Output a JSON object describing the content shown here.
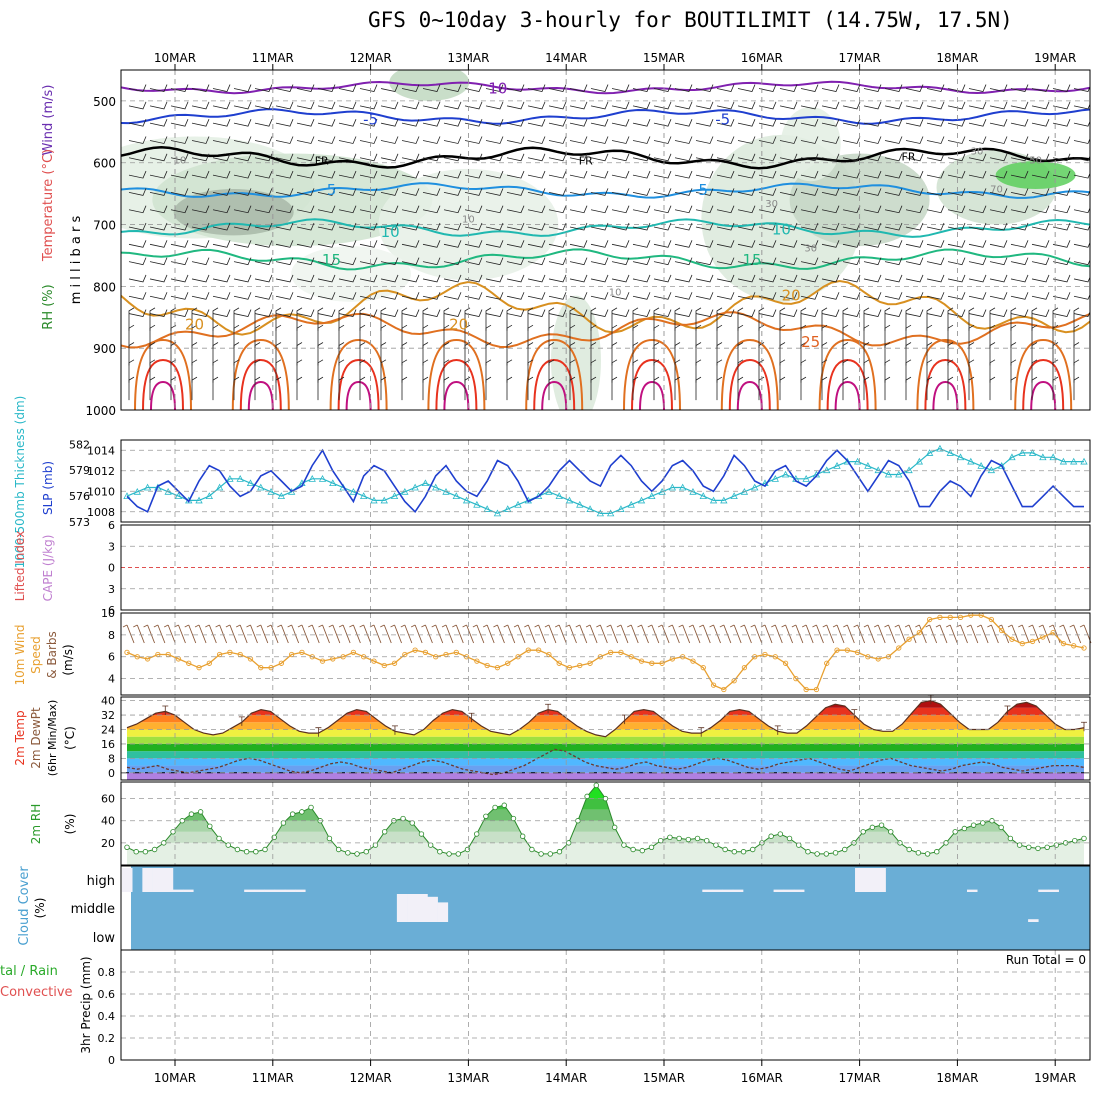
{
  "title": "GFS 0~10day 3-hourly for BOUTILIMIT (14.75W, 17.5N)",
  "colors": {
    "cloud_blue": "#6aaed6",
    "temp_band_red": "#e8321e",
    "rh_green": "#3fbf3f",
    "wind_orange": "#e8a030",
    "slp_blue": "#1f3fcf",
    "thickness_cyan": "#2ab8c8",
    "barb_brown": "#8b5a3c",
    "lifted_red": "#e05050",
    "cape_purple": "#c080d0"
  },
  "chart_data": [
    {
      "type": "heatmap",
      "panel": "upper-air",
      "ylabel": "millibars",
      "side_labels": [
        "Wind (m/s)",
        "Temperature (°C)",
        "RH (%)"
      ],
      "dates": [
        "10MAR",
        "11MAR",
        "12MAR",
        "13MAR",
        "14MAR",
        "15MAR",
        "16MAR",
        "17MAR",
        "18MAR",
        "19MAR"
      ],
      "yticks": [
        500,
        600,
        700,
        800,
        900,
        1000
      ],
      "ylim": [
        450,
        1000
      ],
      "isotherm_labels": [
        {
          "label": "10",
          "pressure": 480,
          "color": "#8020b0",
          "day": 3.3
        },
        {
          "label": "-5",
          "pressure": 530,
          "color": "#1f3fcf",
          "day": 2.0
        },
        {
          "label": "-5",
          "pressure": 530,
          "color": "#1f3fcf",
          "day": 5.6
        },
        {
          "label": "FR",
          "pressure": 595,
          "color": "#000000",
          "day": 1.5
        },
        {
          "label": "FR",
          "pressure": 595,
          "color": "#000000",
          "day": 4.2
        },
        {
          "label": "FR",
          "pressure": 588,
          "color": "#000000",
          "day": 7.5
        },
        {
          "label": "5",
          "pressure": 644,
          "color": "#1f8fdf",
          "day": 1.6
        },
        {
          "label": "5",
          "pressure": 644,
          "color": "#1f8fdf",
          "day": 5.4
        },
        {
          "label": "10",
          "pressure": 712,
          "color": "#20b8b0",
          "day": 2.2
        },
        {
          "label": "10",
          "pressure": 708,
          "color": "#20b8b0",
          "day": 6.2
        },
        {
          "label": "15",
          "pressure": 757,
          "color": "#20b880",
          "day": 1.6
        },
        {
          "label": "15",
          "pressure": 757,
          "color": "#20b880",
          "day": 5.9
        },
        {
          "label": "20",
          "pressure": 862,
          "color": "#d89020",
          "day": 0.2
        },
        {
          "label": "20",
          "pressure": 862,
          "color": "#d89020",
          "day": 2.9
        },
        {
          "label": "20",
          "pressure": 815,
          "color": "#d89020",
          "day": 6.3
        },
        {
          "label": "25",
          "pressure": 890,
          "color": "#e06020",
          "day": 6.5
        }
      ],
      "rh_labels": [
        {
          "label": "10",
          "pressure": 595,
          "day": 0.05
        },
        {
          "label": "10",
          "pressure": 690,
          "day": 3.0
        },
        {
          "label": "10",
          "pressure": 808,
          "day": 4.5
        },
        {
          "label": "30",
          "pressure": 665,
          "day": 6.1
        },
        {
          "label": "30",
          "pressure": 737,
          "day": 6.5
        },
        {
          "label": "30",
          "pressure": 580,
          "day": 8.2
        },
        {
          "label": "50",
          "pressure": 595,
          "day": 8.8
        },
        {
          "label": "70",
          "pressure": 642,
          "day": 8.4
        }
      ]
    },
    {
      "type": "line",
      "panel": "slp-thickness",
      "ylabel_left": "1000-500mb Thickness (dm)",
      "ylabel_right": "SLP (mb)",
      "yticks_left": [
        573,
        576,
        579,
        582
      ],
      "yticks_right": [
        1008,
        1010,
        1012,
        1014
      ],
      "ylim_right": [
        1007,
        1015
      ],
      "ylim_left": [
        573,
        582.5
      ],
      "series": [
        {
          "name": "SLP (mb)",
          "values": [
            1009.5,
            1008.5,
            1008,
            1010.5,
            1011,
            1010,
            1009,
            1011,
            1012.5,
            1012,
            1010.5,
            1009.5,
            1010,
            1011.5,
            1012,
            1011,
            1010,
            1010.5,
            1012.5,
            1014,
            1012,
            1010.5,
            1009,
            1011.5,
            1012.5,
            1012,
            1010.5,
            1009,
            1008,
            1009.5,
            1011.5,
            1012.5,
            1011,
            1010,
            1009.5,
            1011,
            1013,
            1012.5,
            1011,
            1009,
            1009.5,
            1010.5,
            1012,
            1013,
            1012,
            1011,
            1010.5,
            1012.5,
            1013.5,
            1012.5,
            1011,
            1010,
            1011,
            1012.5,
            1013,
            1012,
            1010.5,
            1010,
            1011.5,
            1013.5,
            1012.5,
            1011,
            1010.5,
            1012,
            1012.5,
            1011,
            1010.5,
            1011.5,
            1013,
            1014,
            1013,
            1011.5,
            1010,
            1011.5,
            1013,
            1012.5,
            1011,
            1008.5,
            1008.5,
            1010,
            1011,
            1010.5,
            1009.5,
            1011.5,
            1013,
            1012.5,
            1010.5,
            1008.5,
            1008.5,
            1009.5,
            1010.5,
            1009.5,
            1008.5,
            1008.5
          ]
        },
        {
          "name": "1000-500mb Thickness (dm)",
          "values": [
            576,
            576.5,
            577,
            577,
            576.5,
            576,
            575.5,
            575.5,
            576,
            577,
            578,
            578,
            577.5,
            577,
            576.5,
            576,
            576.5,
            577.5,
            578,
            578,
            577.5,
            577,
            576.5,
            576,
            575.5,
            575.5,
            576,
            576.5,
            577,
            577.5,
            577,
            576.5,
            576,
            575.5,
            575,
            574.5,
            574,
            574.5,
            575,
            575.5,
            576,
            576.5,
            576,
            575.5,
            575,
            574.5,
            574,
            574,
            574.5,
            575,
            575.5,
            576,
            576.5,
            577,
            577,
            576.5,
            576,
            575.5,
            575.5,
            576,
            576.5,
            577,
            577.5,
            578,
            578.5,
            578,
            578,
            578.5,
            579,
            579.5,
            580,
            580,
            579.5,
            579,
            578.5,
            578.5,
            579,
            580,
            581,
            581.5,
            581,
            580.5,
            580,
            579.5,
            579,
            579.5,
            580.5,
            581,
            581,
            580.5,
            580.5,
            580,
            580,
            580
          ]
        }
      ]
    },
    {
      "type": "line",
      "panel": "lifted-cape",
      "ylabel_left": "Lifted Index",
      "ylabel_right": "CAPE (J/kg)",
      "yticks_left": [
        -6,
        -3,
        0,
        3,
        6
      ],
      "ylim": [
        -6,
        6
      ],
      "series": [
        {
          "name": "Lifted Index",
          "values": []
        }
      ]
    },
    {
      "type": "line",
      "panel": "10m-wind",
      "ylabel": "10m Wind Speed & Barbs (m/s)",
      "yticks": [
        4,
        6,
        8,
        10
      ],
      "ylim": [
        2.5,
        10
      ],
      "series": [
        {
          "name": "10m Wind Speed",
          "values": [
            6.4,
            6.0,
            5.8,
            6.2,
            6.2,
            5.8,
            5.4,
            5.0,
            5.4,
            6.2,
            6.4,
            6.2,
            5.8,
            5.0,
            5.0,
            5.4,
            6.2,
            6.4,
            6.0,
            5.6,
            5.8,
            6.0,
            6.4,
            6.0,
            5.6,
            5.2,
            5.4,
            6.2,
            6.6,
            6.4,
            6.0,
            6.2,
            6.4,
            6.0,
            5.6,
            5.2,
            5.0,
            5.4,
            6.0,
            6.6,
            6.6,
            6.2,
            5.4,
            5.0,
            5.2,
            5.4,
            6.0,
            6.4,
            6.4,
            6.0,
            5.6,
            5.4,
            5.4,
            5.8,
            6.0,
            5.6,
            5.0,
            3.4,
            3.0,
            3.8,
            5.0,
            6.0,
            6.2,
            6.0,
            5.4,
            4.0,
            3.0,
            3.0,
            5.4,
            6.6,
            6.6,
            6.4,
            6.0,
            5.8,
            6.0,
            6.8,
            7.6,
            8.2,
            9.4,
            9.6,
            9.6,
            9.6,
            9.8,
            9.8,
            9.4,
            8.4,
            7.6,
            7.2,
            7.4,
            7.8,
            8.2,
            7.2,
            7.0,
            6.8
          ]
        }
      ]
    },
    {
      "type": "area",
      "panel": "2m-temp",
      "ylabel": "2m Temp 2m DewPt (6hr Min/Max) (°C)",
      "yticks": [
        0,
        8,
        16,
        24,
        32,
        40
      ],
      "ylim": [
        -4,
        42
      ],
      "series": [
        {
          "name": "2m Temp",
          "values": [
            25,
            27,
            30,
            33,
            34,
            32,
            28,
            24,
            22,
            21,
            22,
            25,
            28,
            33,
            35,
            34,
            30,
            26,
            23,
            22,
            22,
            25,
            29,
            33,
            35,
            34,
            30,
            26,
            23,
            22,
            21,
            24,
            29,
            33,
            35,
            34,
            30,
            26,
            23,
            22,
            21,
            24,
            28,
            33,
            35,
            34,
            30,
            26,
            23,
            21,
            20,
            24,
            29,
            34,
            35,
            34,
            30,
            26,
            23,
            22,
            22,
            25,
            29,
            34,
            35,
            34,
            30,
            26,
            23,
            22,
            22,
            26,
            31,
            36,
            38,
            37,
            32,
            27,
            24,
            23,
            23,
            27,
            33,
            39,
            40,
            38,
            33,
            28,
            24,
            24,
            24,
            28,
            34,
            38,
            39,
            37,
            32,
            27,
            24,
            24,
            25
          ]
        },
        {
          "name": "2m DewPt",
          "values": [
            3,
            2,
            3,
            4,
            2,
            1,
            0,
            1,
            2,
            3,
            5,
            7,
            8,
            7,
            5,
            3,
            1,
            0,
            1,
            3,
            5,
            6,
            5,
            3,
            2,
            1,
            0,
            2,
            4,
            6,
            7,
            6,
            4,
            2,
            1,
            0,
            -1,
            0,
            2,
            4,
            7,
            10,
            13,
            12,
            9,
            6,
            4,
            3,
            2,
            3,
            5,
            6,
            4,
            3,
            2,
            3,
            5,
            7,
            8,
            7,
            5,
            3,
            2,
            3,
            5,
            6,
            7,
            8,
            6,
            4,
            2,
            1,
            3,
            5,
            7,
            8,
            6,
            4,
            3,
            2,
            1,
            2,
            4,
            5,
            6,
            5,
            3,
            2,
            1,
            2,
            3,
            4,
            4,
            4,
            3
          ]
        }
      ]
    },
    {
      "type": "area",
      "panel": "2m-rh",
      "ylabel": "2m RH (%)",
      "yticks": [
        20,
        40,
        60
      ],
      "ylim": [
        0,
        75
      ],
      "series": [
        {
          "name": "2m RH",
          "values": [
            16,
            12,
            12,
            14,
            20,
            30,
            40,
            46,
            48,
            35,
            24,
            18,
            14,
            12,
            12,
            14,
            25,
            38,
            46,
            48,
            52,
            40,
            24,
            14,
            11,
            10,
            12,
            18,
            30,
            40,
            42,
            38,
            28,
            18,
            12,
            10,
            10,
            14,
            28,
            44,
            52,
            54,
            42,
            26,
            14,
            10,
            10,
            12,
            20,
            40,
            62,
            72,
            60,
            34,
            18,
            14,
            13,
            16,
            22,
            25,
            24,
            23,
            24,
            22,
            18,
            14,
            12,
            12,
            14,
            20,
            26,
            28,
            24,
            18,
            12,
            10,
            10,
            11,
            14,
            20,
            30,
            34,
            36,
            30,
            20,
            14,
            11,
            10,
            12,
            20,
            30,
            33,
            36,
            38,
            40,
            34,
            24,
            18,
            16,
            15,
            16,
            18,
            20,
            22,
            24
          ]
        }
      ]
    },
    {
      "type": "bar",
      "panel": "cloud-cover",
      "ylabel": "Cloud Cover (%)",
      "categories": [
        "high",
        "middle",
        "low"
      ],
      "layers": {
        "high": [
          100,
          0,
          100,
          100,
          100,
          10,
          10,
          0,
          0,
          0,
          0,
          0,
          10,
          10,
          10,
          10,
          10,
          10,
          0,
          0,
          0,
          0,
          0,
          0,
          0,
          0,
          0,
          0,
          0,
          0,
          0,
          0,
          0,
          0,
          0,
          0,
          0,
          0,
          0,
          0,
          0,
          0,
          0,
          0,
          0,
          0,
          0,
          0,
          0,
          0,
          0,
          0,
          0,
          0,
          0,
          0,
          0,
          10,
          10,
          10,
          10,
          0,
          0,
          0,
          10,
          10,
          10,
          0,
          0,
          0,
          0,
          0,
          100,
          100,
          100,
          0,
          0,
          0,
          0,
          0,
          0,
          0,
          0,
          10,
          0,
          0,
          0,
          0,
          0,
          0,
          10,
          10,
          0,
          0,
          0
        ],
        "middle": [
          0,
          0,
          0,
          0,
          0,
          0,
          0,
          0,
          0,
          0,
          0,
          0,
          0,
          0,
          0,
          0,
          0,
          0,
          0,
          0,
          0,
          0,
          0,
          0,
          0,
          0,
          0,
          100,
          100,
          100,
          90,
          70,
          0,
          0,
          0,
          0,
          0,
          0,
          0,
          0,
          0,
          0,
          0,
          0,
          0,
          0,
          0,
          0,
          0,
          0,
          0,
          0,
          0,
          0,
          0,
          0,
          0,
          0,
          0,
          0,
          0,
          0,
          0,
          0,
          0,
          0,
          0,
          0,
          0,
          0,
          0,
          0,
          0,
          0,
          0,
          0,
          0,
          0,
          0,
          0,
          0,
          0,
          0,
          0,
          0,
          0,
          0,
          0,
          0,
          10,
          0,
          0,
          0,
          0,
          0
        ],
        "low": []
      }
    },
    {
      "type": "bar",
      "panel": "precip",
      "ylabel": "3hr Precip (mm)",
      "side_labels": [
        "Total / Rain",
        "Convective"
      ],
      "annotation": "Run Total = 0",
      "yticks": [
        0,
        0.2,
        0.4,
        0.6,
        0.8
      ],
      "ylim": [
        0,
        1.0
      ],
      "series": [
        {
          "name": "3hr Precip",
          "values": []
        }
      ]
    }
  ],
  "labels": {
    "upper_wind": "Wind (m/s)",
    "upper_temp": "Temperature (°C)",
    "upper_rh": "RH (%)",
    "upper_mb": "m i l l i b a r s",
    "thickness": "1000-500mb Thickness (dm)",
    "slp": "SLP (mb)",
    "lifted": "Lifted Index",
    "cape": "CAPE (J/kg)",
    "wind10_a": "10m Wind",
    "wind10_b": "Speed",
    "wind10_c": "(m/s)",
    "wind10_d": "& Barbs",
    "temp2m_a": "2m Temp",
    "temp2m_b": "2m DewPt",
    "temp2m_c": "(6hr Min/Max)",
    "temp2m_d": "(°C)",
    "rh2m_a": "2m RH",
    "rh2m_b": "(%)",
    "cloud_a": "Cloud Cover",
    "cloud_b": "(%)",
    "precip_a": "tal / Rain",
    "precip_b": "Convective",
    "precip_c": "3hr Precip (mm)",
    "run_total": "Run Total = 0"
  }
}
